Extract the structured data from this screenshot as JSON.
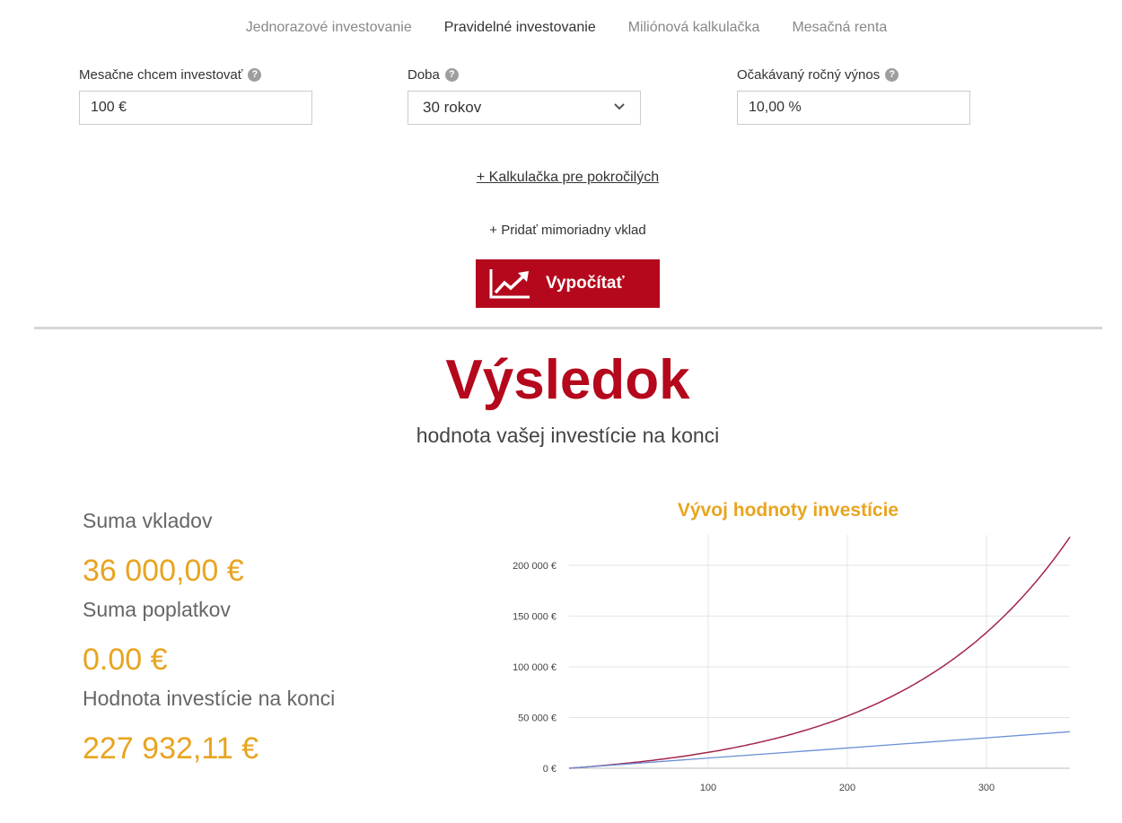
{
  "tabs": [
    {
      "label": "Jednorazové investovanie",
      "active": false
    },
    {
      "label": "Pravidelné investovanie",
      "active": true
    },
    {
      "label": "Miliónová kalkulačka",
      "active": false
    },
    {
      "label": "Mesačná renta",
      "active": false
    }
  ],
  "form": {
    "monthly": {
      "label": "Mesačne chcem investovať",
      "value": "100 €"
    },
    "period": {
      "label": "Doba",
      "value": "30 rokov"
    },
    "yield": {
      "label": "Očakávaný ročný výnos",
      "value": "10,00 %"
    },
    "help_glyph": "?"
  },
  "advanced_link": "+ Kalkulačka pre pokročilých",
  "extra_deposit": "+ Pridať mimoriadny vklad",
  "calculate_button": "Vypočítať",
  "result": {
    "title": "Výsledok",
    "subtitle": "hodnota vašej investície na konci",
    "deposits_label": "Suma vkladov",
    "deposits_value": "36 000,00 €",
    "fees_label": "Suma poplatkov",
    "fees_value": "0.00 €",
    "final_label": "Hodnota investície na konci",
    "final_value": "227 932,11 €"
  },
  "chart_data": {
    "type": "line",
    "title": "Vývoj hodnoty investície",
    "x_ticks": [
      100,
      200,
      300
    ],
    "y_ticks": [
      "0 €",
      "50 000 €",
      "100 000 €",
      "150 000 €",
      "200 000 €"
    ],
    "xlim": [
      0,
      360
    ],
    "ylim": [
      0,
      230000
    ],
    "grid": true,
    "series": [
      {
        "color": "#a3234f",
        "x": [
          0,
          60,
          120,
          180,
          240,
          300,
          360
        ],
        "y": [
          0,
          7744,
          20484,
          41447,
          75937,
          132683,
          227932
        ]
      },
      {
        "color": "#6b8fd6",
        "x": [
          0,
          60,
          120,
          180,
          240,
          300,
          360
        ],
        "y": [
          0,
          6000,
          12000,
          18000,
          24000,
          30000,
          36000
        ]
      }
    ]
  }
}
